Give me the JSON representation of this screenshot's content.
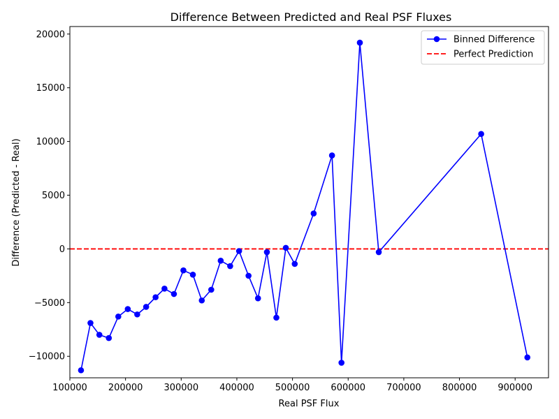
{
  "chart_data": {
    "type": "line",
    "title": "Difference Between Predicted and Real PSF Fluxes",
    "xlabel": "Real PSF Flux",
    "ylabel": "Difference (Predicted - Real)",
    "xlim": [
      100000,
      960000
    ],
    "ylim": [
      -12000,
      20700
    ],
    "xticks": [
      100000,
      200000,
      300000,
      400000,
      500000,
      600000,
      700000,
      800000,
      900000
    ],
    "yticks": [
      -10000,
      -5000,
      0,
      5000,
      10000,
      15000,
      20000
    ],
    "xtick_labels": [
      "100000",
      "200000",
      "300000",
      "400000",
      "500000",
      "600000",
      "700000",
      "800000",
      "900000"
    ],
    "ytick_labels": [
      "−10000",
      "−5000",
      "0",
      "5000",
      "10000",
      "15000",
      "20000"
    ],
    "series": [
      {
        "name": "Binned Difference",
        "color": "#0000ff",
        "marker": "circle",
        "x": [
          120000,
          137000,
          153000,
          170000,
          187000,
          204000,
          221000,
          237000,
          254000,
          270000,
          287000,
          304000,
          321000,
          337000,
          354000,
          371000,
          388000,
          404000,
          421000,
          438000,
          454000,
          471000,
          488000,
          504000,
          538000,
          571000,
          588000,
          621000,
          655000,
          839000,
          922000
        ],
        "y": [
          -11300,
          -6900,
          -8000,
          -8300,
          -6300,
          -5600,
          -6100,
          -5400,
          -4500,
          -3700,
          -4200,
          -2000,
          -2400,
          -4800,
          -3800,
          -1100,
          -1600,
          -200,
          -2500,
          -4600,
          -300,
          -6400,
          100,
          -1400,
          3300,
          8700,
          -10600,
          19200,
          -300,
          10700,
          -10100
        ]
      }
    ],
    "reference_line": {
      "name": "Perfect Prediction",
      "y": 0,
      "color": "#ff0000",
      "style": "dashed"
    },
    "legend": {
      "placement": "upper right",
      "entries": [
        "Binned Difference",
        "Perfect Prediction"
      ]
    },
    "grid": false
  }
}
